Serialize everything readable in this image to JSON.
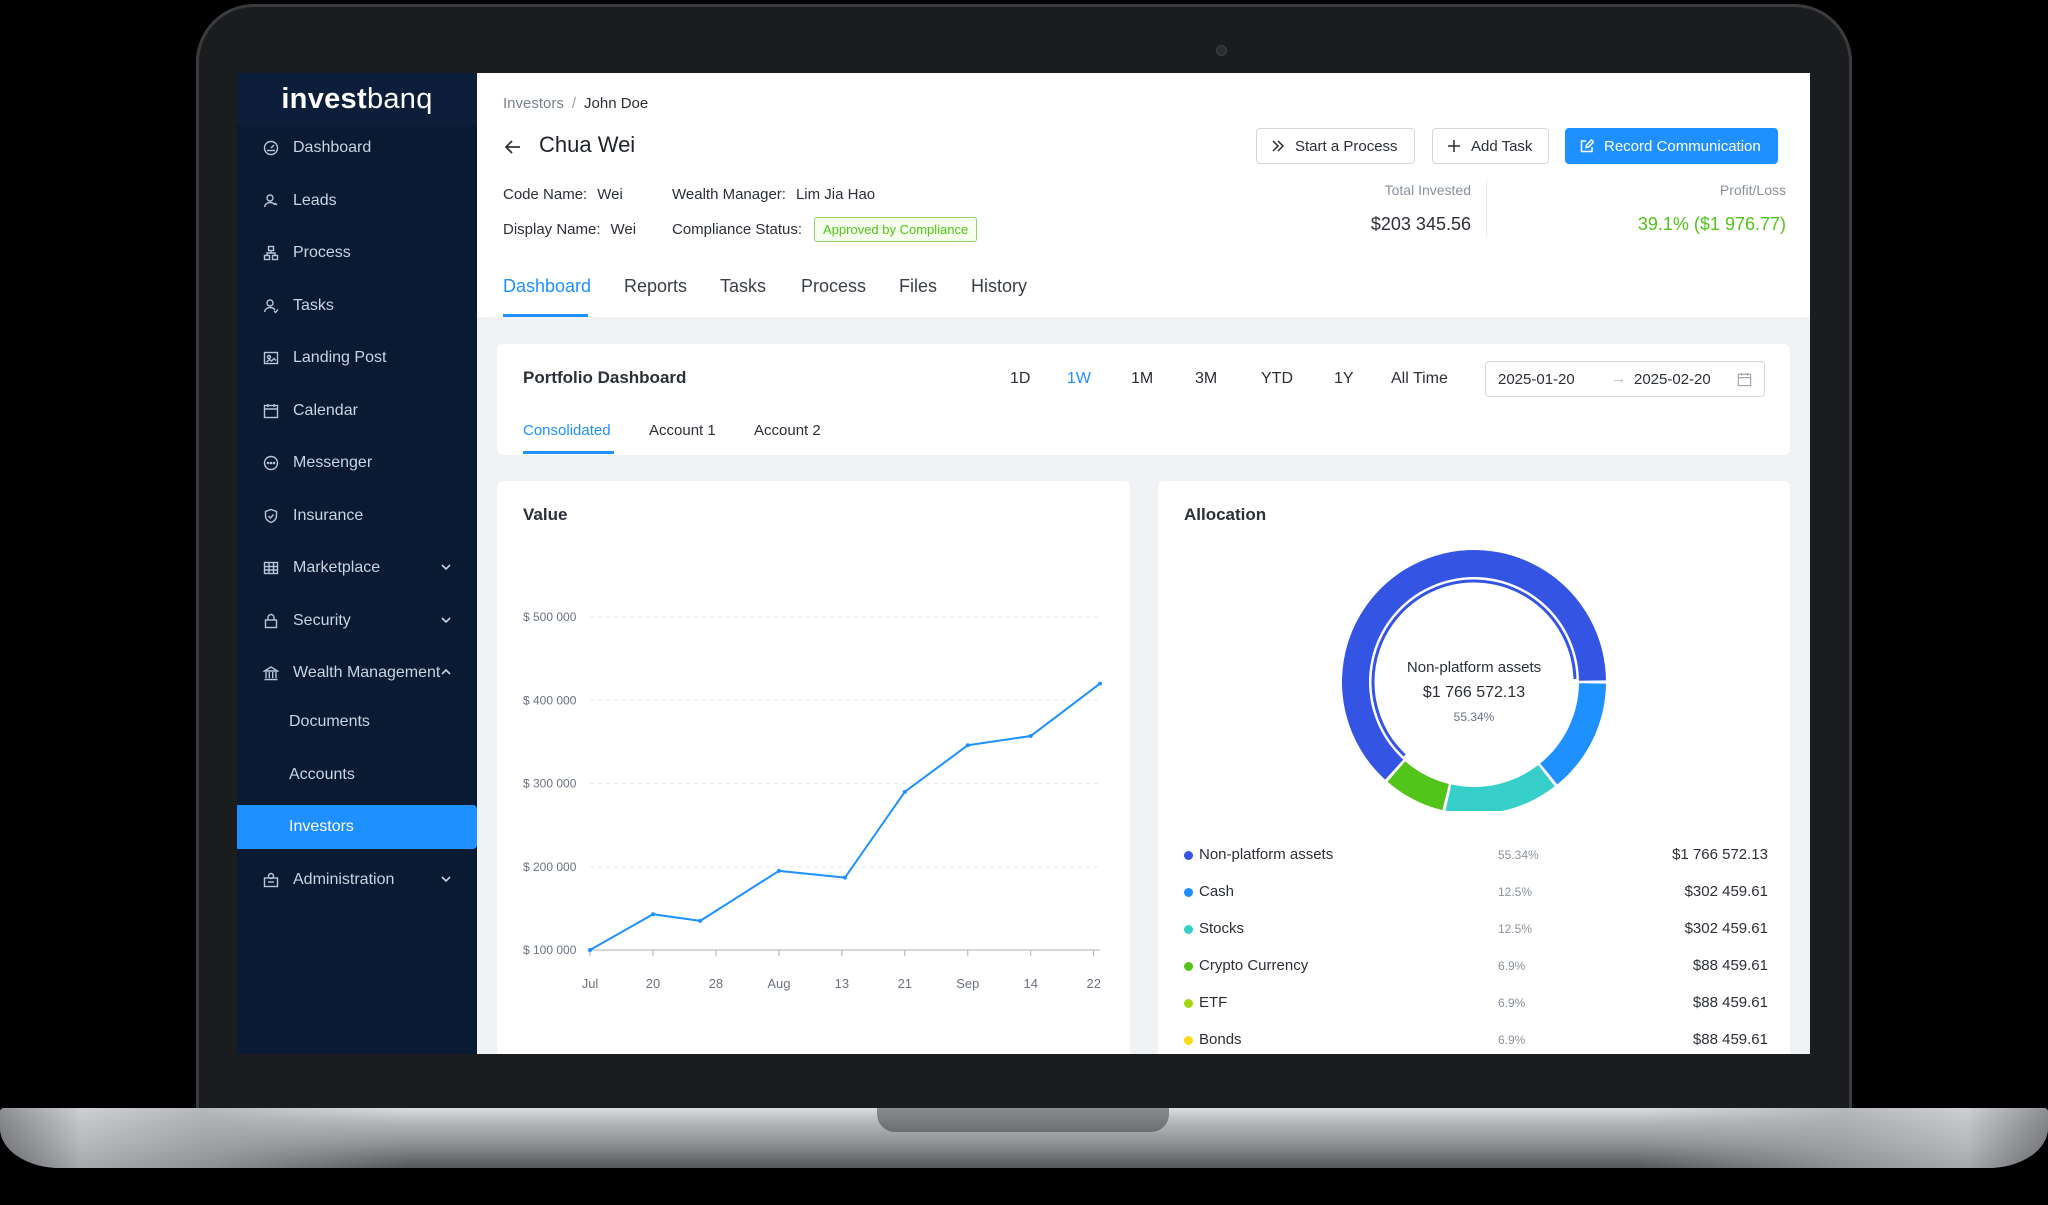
{
  "app": {
    "logo_bold": "invest",
    "logo_light": "banq"
  },
  "sidebar": {
    "items": [
      {
        "label": "Dashboard",
        "icon": "dashboard-icon"
      },
      {
        "label": "Leads",
        "icon": "leads-icon"
      },
      {
        "label": "Process",
        "icon": "process-icon"
      },
      {
        "label": "Tasks",
        "icon": "tasks-icon"
      },
      {
        "label": "Landing Post",
        "icon": "landing-icon"
      },
      {
        "label": "Calendar",
        "icon": "calendar-icon"
      },
      {
        "label": "Messenger",
        "icon": "messenger-icon"
      },
      {
        "label": "Insurance",
        "icon": "shield-icon"
      },
      {
        "label": "Marketplace",
        "icon": "table-icon"
      },
      {
        "label": "Security",
        "icon": "lock-icon"
      },
      {
        "label": "Wealth Management",
        "icon": "bank-icon"
      },
      {
        "label": "Documents"
      },
      {
        "label": "Accounts"
      },
      {
        "label": "Investors"
      },
      {
        "label": "Administration",
        "icon": "admin-icon"
      }
    ]
  },
  "breadcrumb": {
    "parent": "Investors",
    "separator": "/",
    "current": "John Doe"
  },
  "investor": {
    "name": "Chua Wei",
    "code_name_label": "Code Name:",
    "code_name": "Wei",
    "display_name_label": "Display Name:",
    "display_name": "Wei",
    "wealth_manager_label": "Wealth Manager:",
    "wealth_manager": "Lim Jia Hao",
    "compliance_label": "Compliance Status:",
    "compliance_status": "Approved by Compliance"
  },
  "actions": {
    "start_process": "Start a Process",
    "add_task": "Add Task",
    "record_communication": "Record Communication"
  },
  "stats": {
    "total_invested_label": "Total Invested",
    "total_invested": "$203 345.56",
    "profit_loss_label": "Profit/Loss",
    "profit_loss": "39.1% ($1 976.77)",
    "profit_color": "#52c41a"
  },
  "tabs": [
    "Dashboard",
    "Reports",
    "Tasks",
    "Process",
    "Files",
    "History"
  ],
  "portfolio": {
    "title": "Portfolio Dashboard",
    "ranges": [
      "1D",
      "1W",
      "1M",
      "3M",
      "YTD",
      "1Y",
      "All Time"
    ],
    "active_range": "1W",
    "date_from": "2025-01-20",
    "date_arrow": "→",
    "date_to": "2025-02-20",
    "subtabs": [
      "Consolidated",
      "Account 1",
      "Account 2"
    ]
  },
  "value_card": {
    "title": "Value"
  },
  "chart_data": {
    "type": "line",
    "categories": [
      "Jul",
      "20",
      "28",
      "Aug",
      "13",
      "21",
      "Sep",
      "14",
      "22"
    ],
    "x": [
      0,
      1,
      1.75,
      3,
      4.05,
      5,
      6,
      7,
      8.1
    ],
    "values": [
      100000,
      143000,
      135000,
      195000,
      187000,
      290000,
      346000,
      357000,
      420000
    ],
    "ytick_labels": [
      "$ 100 000",
      "$ 200 000",
      "$ 300 000",
      "$ 400 000",
      "$ 500 000"
    ],
    "yticks": [
      100000,
      200000,
      300000,
      400000,
      500000
    ],
    "ylim": [
      100000,
      500000
    ],
    "grid": true,
    "color": "#1e90ff"
  },
  "allocation": {
    "title": "Allocation",
    "center_label": "Non-platform assets",
    "center_value": "$1 766 572.13",
    "center_pct": "55.34%",
    "items": [
      {
        "name": "Non-platform assets",
        "pct": "55.34%",
        "value": "$1 766 572.13",
        "color": "#3454e3",
        "share": 0.5534
      },
      {
        "name": "Cash",
        "pct": "12.5%",
        "value": "$302 459.61",
        "color": "#1e90ff",
        "share": 0.125
      },
      {
        "name": "Stocks",
        "pct": "12.5%",
        "value": "$302 459.61",
        "color": "#36cfc9",
        "share": 0.125
      },
      {
        "name": "Crypto Currency",
        "pct": "6.9%",
        "value": "$88 459.61",
        "color": "#52c41a",
        "share": 0.069
      },
      {
        "name": "ETF",
        "pct": "6.9%",
        "value": "$88 459.61",
        "color": "#a0d911",
        "share": 0.069
      },
      {
        "name": "Bonds",
        "pct": "6.9%",
        "value": "$88 459.61",
        "color": "#fadb14",
        "share": 0.069
      }
    ]
  }
}
